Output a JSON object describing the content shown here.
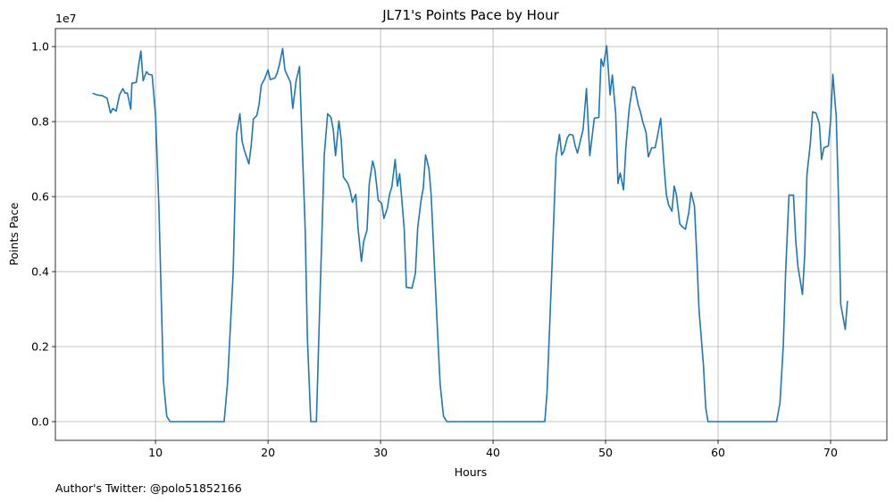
{
  "chart_data": {
    "type": "line",
    "title": "JL71's Points Pace by Hour",
    "x_label": "Hours",
    "y_label": "Points Pace",
    "y_offset_label": "1e7",
    "footer": "Author's Twitter: @polo51852166",
    "grid": true,
    "xlim": [
      1.1,
      75.0
    ],
    "ylim": [
      -0.05,
      1.048
    ],
    "xticks": [
      10,
      20,
      30,
      40,
      50,
      60,
      70
    ],
    "yticks": [
      {
        "value": 0,
        "label": "0.0"
      },
      0.2,
      0.4,
      0.6,
      0.8,
      {
        "value": 1,
        "label": "1.0"
      }
    ],
    "x": [
      4.4,
      4.8,
      5.3,
      5.7,
      6.0,
      6.2,
      6.5,
      6.8,
      7.1,
      7.3,
      7.5,
      7.8,
      7.9,
      8.3,
      8.5,
      8.7,
      8.9,
      9.2,
      9.4,
      9.7,
      10.0,
      10.3,
      10.7,
      11.0,
      11.3,
      16.1,
      16.4,
      16.9,
      17.2,
      17.5,
      17.7,
      17.9,
      18.3,
      18.5,
      18.7,
      19.0,
      19.2,
      19.4,
      19.7,
      20.0,
      20.2,
      20.6,
      20.8,
      21.0,
      21.3,
      21.5,
      21.7,
      22.0,
      22.2,
      22.5,
      22.8,
      23.0,
      23.3,
      23.5,
      23.8,
      24.3,
      24.6,
      25.0,
      25.3,
      25.6,
      25.8,
      26.0,
      26.3,
      26.5,
      26.7,
      27.1,
      27.3,
      27.5,
      27.8,
      28.0,
      28.3,
      28.5,
      28.8,
      29.0,
      29.3,
      29.5,
      29.8,
      30.1,
      30.3,
      30.6,
      30.8,
      31.0,
      31.3,
      31.5,
      31.7,
      32.1,
      32.3,
      32.8,
      33.1,
      33.3,
      33.6,
      33.8,
      34.0,
      34.3,
      34.5,
      34.8,
      35.1,
      35.3,
      35.6,
      35.9,
      44.6,
      44.8,
      45.2,
      45.6,
      45.9,
      46.1,
      46.3,
      46.6,
      46.8,
      47.1,
      47.3,
      47.5,
      47.8,
      48.0,
      48.3,
      48.6,
      48.8,
      49.0,
      49.4,
      49.6,
      49.8,
      50.1,
      50.4,
      50.6,
      50.9,
      51.1,
      51.3,
      51.6,
      51.8,
      52.1,
      52.4,
      52.6,
      52.9,
      53.1,
      53.3,
      53.6,
      53.8,
      54.1,
      54.4,
      54.6,
      54.9,
      55.2,
      55.4,
      55.6,
      55.9,
      56.1,
      56.3,
      56.6,
      56.8,
      57.1,
      57.4,
      57.6,
      57.9,
      58.1,
      58.3,
      58.7,
      58.9,
      59.1,
      65.2,
      65.5,
      65.8,
      66.0,
      66.3,
      66.7,
      66.9,
      67.1,
      67.5,
      67.7,
      67.9,
      68.2,
      68.4,
      68.7,
      69.0,
      69.2,
      69.4,
      69.8,
      70.0,
      70.2,
      70.5,
      70.7,
      70.9,
      71.3,
      71.5
    ],
    "series": [
      {
        "name": "Points Pace",
        "color": "#1f77b4",
        "values": [
          0.876,
          0.871,
          0.869,
          0.862,
          0.823,
          0.835,
          0.828,
          0.871,
          0.888,
          0.876,
          0.876,
          0.833,
          0.902,
          0.905,
          0.95,
          0.988,
          0.909,
          0.933,
          0.926,
          0.924,
          0.819,
          0.575,
          0.11,
          0.014,
          0,
          0,
          0.103,
          0.396,
          0.766,
          0.821,
          0.747,
          0.723,
          0.687,
          0.735,
          0.807,
          0.816,
          0.845,
          0.897,
          0.914,
          0.938,
          0.912,
          0.916,
          0.928,
          0.95,
          0.995,
          0.938,
          0.924,
          0.905,
          0.835,
          0.909,
          0.947,
          0.771,
          0.516,
          0.222,
          0,
          0,
          0.313,
          0.711,
          0.821,
          0.811,
          0.778,
          0.709,
          0.802,
          0.754,
          0.652,
          0.635,
          0.616,
          0.585,
          0.606,
          0.516,
          0.427,
          0.48,
          0.511,
          0.635,
          0.695,
          0.671,
          0.59,
          0.582,
          0.542,
          0.568,
          0.606,
          0.625,
          0.699,
          0.628,
          0.661,
          0.516,
          0.358,
          0.356,
          0.396,
          0.516,
          0.59,
          0.623,
          0.711,
          0.675,
          0.604,
          0.408,
          0.217,
          0.098,
          0.014,
          0,
          0,
          0.079,
          0.384,
          0.706,
          0.766,
          0.711,
          0.721,
          0.757,
          0.766,
          0.764,
          0.735,
          0.716,
          0.754,
          0.778,
          0.888,
          0.709,
          0.759,
          0.809,
          0.811,
          0.967,
          0.947,
          1.002,
          0.871,
          0.924,
          0.821,
          0.635,
          0.663,
          0.618,
          0.73,
          0.835,
          0.893,
          0.891,
          0.845,
          0.826,
          0.8,
          0.771,
          0.706,
          0.73,
          0.73,
          0.759,
          0.809,
          0.68,
          0.606,
          0.578,
          0.561,
          0.628,
          0.604,
          0.527,
          0.52,
          0.513,
          0.558,
          0.611,
          0.575,
          0.449,
          0.301,
          0.15,
          0.038,
          0,
          0,
          0.05,
          0.205,
          0.396,
          0.604,
          0.604,
          0.484,
          0.413,
          0.339,
          0.444,
          0.659,
          0.742,
          0.826,
          0.823,
          0.795,
          0.699,
          0.73,
          0.735,
          0.802,
          0.926,
          0.814,
          0.599,
          0.313,
          0.246,
          0.322
        ]
      }
    ]
  }
}
